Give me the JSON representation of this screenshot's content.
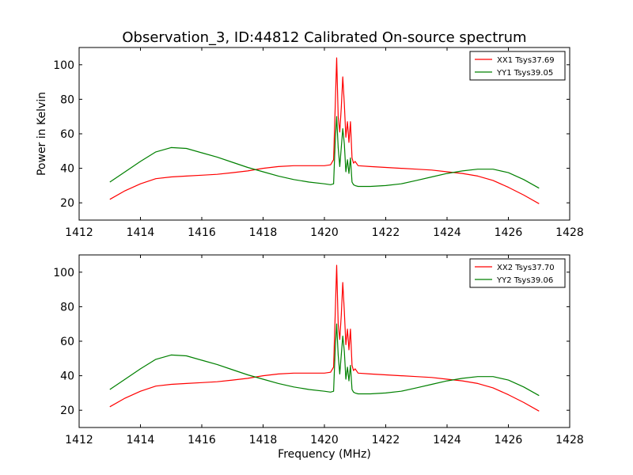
{
  "title": "Observation_3, ID:44812 Calibrated On-source spectrum",
  "colors": {
    "xx": "#ff0000",
    "yy": "#008000",
    "frame": "#000000",
    "background": "#ffffff"
  },
  "chart_data": [
    {
      "type": "line",
      "title": "Observation_3, ID:44812 Calibrated On-source spectrum",
      "xlabel": "",
      "ylabel": "Power in Kelvin",
      "xlim": [
        1412,
        1428
      ],
      "ylim": [
        10,
        110
      ],
      "xticks": [
        "1412",
        "1414",
        "1416",
        "1418",
        "1420",
        "1422",
        "1424",
        "1426",
        "1428"
      ],
      "yticks": [
        "20",
        "40",
        "60",
        "80",
        "100"
      ],
      "grid": false,
      "legend_position": "top-right",
      "series": [
        {
          "name": "XX1 Tsys37.69",
          "color": "#ff0000",
          "x": [
            1413.0,
            1413.5,
            1414.0,
            1414.5,
            1415.0,
            1415.5,
            1416.0,
            1416.5,
            1417.0,
            1417.5,
            1418.0,
            1418.5,
            1419.0,
            1419.5,
            1420.0,
            1420.2,
            1420.3,
            1420.35,
            1420.4,
            1420.45,
            1420.5,
            1420.55,
            1420.6,
            1420.65,
            1420.7,
            1420.75,
            1420.8,
            1420.85,
            1420.9,
            1420.95,
            1421.0,
            1421.1,
            1421.5,
            1422.0,
            1422.5,
            1423.0,
            1423.5,
            1424.0,
            1424.5,
            1425.0,
            1425.5,
            1426.0,
            1426.5,
            1427.0
          ],
          "y": [
            22,
            27,
            31,
            34,
            35,
            35.5,
            36,
            36.5,
            37.5,
            38.5,
            40,
            41,
            41.5,
            41.5,
            41.5,
            42,
            45,
            75,
            104,
            70,
            61,
            75,
            93,
            77,
            58,
            67,
            55,
            67,
            46,
            43,
            44,
            41.5,
            41,
            40.5,
            40,
            39.5,
            39,
            38,
            37,
            35.5,
            33,
            29,
            24.5,
            19.5
          ]
        },
        {
          "name": "YY1 Tsys39.05",
          "color": "#008000",
          "x": [
            1413.0,
            1413.5,
            1414.0,
            1414.5,
            1415.0,
            1415.5,
            1416.0,
            1416.5,
            1417.0,
            1417.5,
            1418.0,
            1418.5,
            1419.0,
            1419.5,
            1420.0,
            1420.2,
            1420.3,
            1420.35,
            1420.4,
            1420.45,
            1420.5,
            1420.55,
            1420.6,
            1420.65,
            1420.7,
            1420.75,
            1420.8,
            1420.85,
            1420.9,
            1420.95,
            1421.0,
            1421.1,
            1421.5,
            1422.0,
            1422.5,
            1423.0,
            1423.5,
            1424.0,
            1424.5,
            1425.0,
            1425.5,
            1426.0,
            1426.5,
            1427.0
          ],
          "y": [
            32,
            38,
            44,
            49.5,
            52,
            51.5,
            49,
            46.5,
            43.5,
            40.5,
            38,
            35.5,
            33.5,
            32,
            31,
            30.5,
            31,
            55,
            70,
            52,
            41,
            52,
            63,
            54,
            38,
            45,
            37,
            46,
            32,
            30.5,
            30,
            29.5,
            29.5,
            30,
            31,
            33,
            35,
            37,
            38.5,
            39.5,
            39.5,
            37.5,
            33.5,
            28.5
          ]
        }
      ]
    },
    {
      "type": "line",
      "title": "",
      "xlabel": "Frequency (MHz)",
      "ylabel": "",
      "xlim": [
        1412,
        1428
      ],
      "ylim": [
        10,
        110
      ],
      "xticks": [
        "1412",
        "1414",
        "1416",
        "1418",
        "1420",
        "1422",
        "1424",
        "1426",
        "1428"
      ],
      "yticks": [
        "20",
        "40",
        "60",
        "80",
        "100"
      ],
      "grid": false,
      "legend_position": "top-right",
      "series": [
        {
          "name": "XX2 Tsys37.70",
          "color": "#ff0000",
          "x": [
            1413.0,
            1413.5,
            1414.0,
            1414.5,
            1415.0,
            1415.5,
            1416.0,
            1416.5,
            1417.0,
            1417.5,
            1418.0,
            1418.5,
            1419.0,
            1419.5,
            1420.0,
            1420.2,
            1420.3,
            1420.35,
            1420.4,
            1420.45,
            1420.5,
            1420.55,
            1420.6,
            1420.65,
            1420.7,
            1420.75,
            1420.8,
            1420.85,
            1420.9,
            1420.95,
            1421.0,
            1421.1,
            1421.5,
            1422.0,
            1422.5,
            1423.0,
            1423.5,
            1424.0,
            1424.5,
            1425.0,
            1425.5,
            1426.0,
            1426.5,
            1427.0
          ],
          "y": [
            22,
            27,
            31,
            34,
            35,
            35.5,
            36,
            36.5,
            37.5,
            38.5,
            40,
            41,
            41.5,
            41.5,
            41.5,
            42,
            45,
            75,
            104,
            70,
            61,
            75,
            94,
            77,
            58,
            67,
            55,
            67,
            46,
            43,
            44,
            41.5,
            41,
            40.5,
            40,
            39.5,
            39,
            38,
            37,
            35.5,
            33,
            29,
            24.5,
            19.5
          ]
        },
        {
          "name": "YY2 Tsys39.06",
          "color": "#008000",
          "x": [
            1413.0,
            1413.5,
            1414.0,
            1414.5,
            1415.0,
            1415.5,
            1416.0,
            1416.5,
            1417.0,
            1417.5,
            1418.0,
            1418.5,
            1419.0,
            1419.5,
            1420.0,
            1420.2,
            1420.3,
            1420.35,
            1420.4,
            1420.45,
            1420.5,
            1420.55,
            1420.6,
            1420.65,
            1420.7,
            1420.75,
            1420.8,
            1420.85,
            1420.9,
            1420.95,
            1421.0,
            1421.1,
            1421.5,
            1422.0,
            1422.5,
            1423.0,
            1423.5,
            1424.0,
            1424.5,
            1425.0,
            1425.5,
            1426.0,
            1426.5,
            1427.0
          ],
          "y": [
            32,
            38,
            44,
            49.5,
            52,
            51.5,
            49,
            46.5,
            43.5,
            40.5,
            38,
            35.5,
            33.5,
            32,
            31,
            30.5,
            31,
            55,
            70,
            52,
            41,
            52,
            63,
            54,
            38,
            45,
            37,
            46,
            32,
            30.5,
            30,
            29.5,
            29.5,
            30,
            31,
            33,
            35,
            37,
            38.5,
            39.5,
            39.5,
            37.5,
            33.5,
            28.5
          ]
        }
      ]
    }
  ]
}
